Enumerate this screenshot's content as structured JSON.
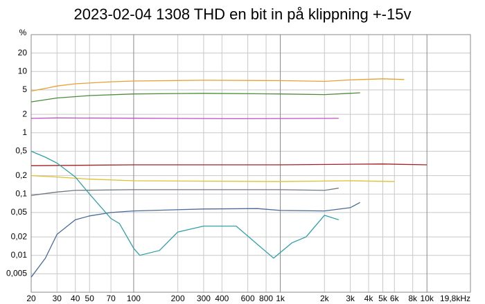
{
  "chart_data": {
    "type": "line",
    "title": "2023-02-04 1308 THD en bit in på klippning +-15v",
    "y_label": "%",
    "log_x": true,
    "log_y": true,
    "grid": true,
    "xlim": [
      20,
      19800
    ],
    "ylim": [
      0.0025,
      40
    ],
    "xticks": [
      20,
      30,
      40,
      50,
      70,
      100,
      200,
      300,
      400,
      600,
      800,
      {
        "value": 1000,
        "label": "1k"
      },
      {
        "value": 2000,
        "label": "2k"
      },
      {
        "value": 3000,
        "label": "3k"
      },
      {
        "value": 4000,
        "label": "4k"
      },
      {
        "value": 5000,
        "label": "5k"
      },
      {
        "value": 6000,
        "label": "6k"
      },
      {
        "value": 8000,
        "label": "8k"
      },
      {
        "value": 10000,
        "label": "10k"
      },
      {
        "value": 19800,
        "label": "19,8kHz"
      }
    ],
    "yticks": [
      20,
      10,
      5,
      2,
      1,
      {
        "value": 0.5,
        "label": "0,5"
      },
      {
        "value": 0.2,
        "label": "0,2"
      },
      {
        "value": 0.1,
        "label": "0,1"
      },
      {
        "value": 0.05,
        "label": "0,05"
      },
      {
        "value": 0.02,
        "label": "0,02"
      },
      {
        "value": 0.01,
        "label": "0,01"
      },
      {
        "value": 0.005,
        "label": "0,005"
      }
    ],
    "series": [
      {
        "color": "#e8a030",
        "x": [
          20,
          25,
          30,
          40,
          70,
          100,
          300,
          1000,
          2000,
          3000,
          5000,
          7000
        ],
        "values": [
          4.8,
          5.3,
          5.8,
          6.3,
          6.8,
          7.0,
          7.2,
          7.1,
          6.9,
          7.3,
          7.6,
          7.4
        ]
      },
      {
        "color": "#4a8a3a",
        "x": [
          20,
          30,
          50,
          100,
          300,
          1000,
          2000,
          3500
        ],
        "values": [
          3.2,
          3.7,
          4.05,
          4.3,
          4.4,
          4.3,
          4.2,
          4.5
        ]
      },
      {
        "color": "#c050c0",
        "x": [
          20,
          30,
          100,
          500,
          2500
        ],
        "values": [
          1.72,
          1.75,
          1.73,
          1.7,
          1.72
        ]
      },
      {
        "color": "#a02020",
        "x": [
          20,
          100,
          1000,
          5000,
          10000
        ],
        "values": [
          0.29,
          0.3,
          0.3,
          0.31,
          0.3
        ]
      },
      {
        "color": "#e0c030",
        "x": [
          20,
          30,
          50,
          100,
          1000,
          3000,
          6000
        ],
        "values": [
          0.2,
          0.19,
          0.175,
          0.165,
          0.16,
          0.165,
          0.16
        ]
      },
      {
        "color": "#707880",
        "x": [
          20,
          30,
          40,
          100,
          1000,
          2000,
          2500
        ],
        "values": [
          0.095,
          0.108,
          0.115,
          0.118,
          0.118,
          0.115,
          0.125
        ]
      },
      {
        "color": "#4a6a9a",
        "x": [
          20,
          25,
          30,
          40,
          50,
          70,
          100,
          300,
          700,
          1000,
          2000,
          3000,
          3500
        ],
        "values": [
          0.0044,
          0.009,
          0.022,
          0.038,
          0.044,
          0.05,
          0.053,
          0.057,
          0.058,
          0.054,
          0.053,
          0.06,
          0.073
        ]
      },
      {
        "color": "#30a0a8",
        "x": [
          20,
          25,
          30,
          40,
          50,
          70,
          80,
          100,
          110,
          150,
          200,
          300,
          500,
          700,
          900,
          1200,
          1500,
          2000,
          2500
        ],
        "values": [
          0.5,
          0.4,
          0.32,
          0.19,
          0.1,
          0.04,
          0.033,
          0.013,
          0.01,
          0.012,
          0.024,
          0.03,
          0.03,
          0.015,
          0.009,
          0.016,
          0.02,
          0.045,
          0.038
        ]
      }
    ]
  }
}
